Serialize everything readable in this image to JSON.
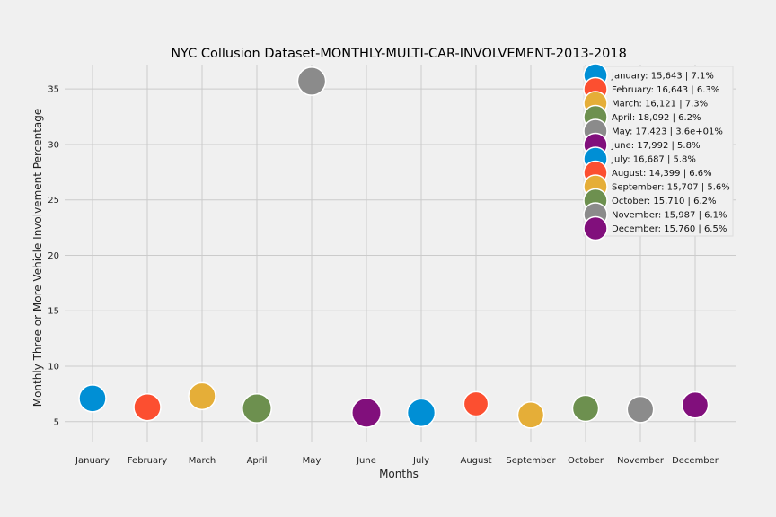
{
  "chart_data": {
    "type": "scatter",
    "title": "NYC Collusion Dataset-MONTHLY-MULTI-CAR-INVOLVEMENT-2013-2018",
    "xlabel": "Months",
    "ylabel": "Monthly Three or More Vehicle Involvement Percentage",
    "categories": [
      "January",
      "February",
      "March",
      "April",
      "May",
      "June",
      "July",
      "August",
      "September",
      "October",
      "November",
      "December"
    ],
    "ylim": [
      3.2,
      37.2
    ],
    "yticks": [
      5,
      10,
      15,
      20,
      25,
      30,
      35
    ],
    "grid": true,
    "legend_position": "top-right",
    "points": [
      {
        "x": "January",
        "y": 7.1,
        "color": "#008fd5",
        "size": 1.0,
        "legend": "January: 15,643 | 7.1%"
      },
      {
        "x": "February",
        "y": 6.3,
        "color": "#fc4f30",
        "size": 1.0,
        "legend": "February: 16,643 | 6.3%"
      },
      {
        "x": "March",
        "y": 7.3,
        "color": "#e5ae38",
        "size": 1.0,
        "legend": "March: 16,121 | 7.3%"
      },
      {
        "x": "April",
        "y": 6.2,
        "color": "#6d904f",
        "size": 1.08,
        "legend": "April: 18,092 | 6.2%"
      },
      {
        "x": "May",
        "y": 35.7,
        "color": "#8b8b8b",
        "size": 1.04,
        "legend": "May: 17,423 | 3.6e+01%"
      },
      {
        "x": "June",
        "y": 5.8,
        "color": "#810f7c",
        "size": 1.08,
        "legend": "June: 17,992 | 5.8%"
      },
      {
        "x": "July",
        "y": 5.8,
        "color": "#008fd5",
        "size": 1.03,
        "legend": "July: 16,687 | 5.8%"
      },
      {
        "x": "August",
        "y": 6.6,
        "color": "#fc4f30",
        "size": 0.91,
        "legend": "August: 14,399 | 6.6%"
      },
      {
        "x": "September",
        "y": 5.6,
        "color": "#e5ae38",
        "size": 0.97,
        "legend": "September: 15,707 | 5.6%"
      },
      {
        "x": "October",
        "y": 6.2,
        "color": "#6d904f",
        "size": 0.97,
        "legend": "October: 15,710 | 6.2%"
      },
      {
        "x": "November",
        "y": 6.1,
        "color": "#8b8b8b",
        "size": 0.98,
        "legend": "November: 15,987 | 6.1%"
      },
      {
        "x": "December",
        "y": 6.5,
        "color": "#810f7c",
        "size": 0.97,
        "legend": "December: 15,760 | 6.5%"
      }
    ]
  }
}
